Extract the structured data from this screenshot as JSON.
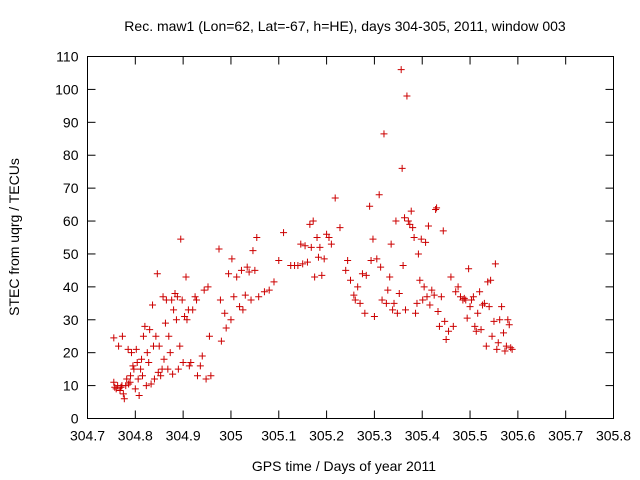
{
  "chart_data": {
    "type": "scatter",
    "title": "Rec. maw1 (Lon=62, Lat=-67, h=HE), days 304-305, 2011, window 003",
    "xlabel": "GPS time / Days of year 2011",
    "ylabel": "STEC from uqrg / TECUs",
    "xlim": [
      304.7,
      305.8
    ],
    "ylim": [
      0,
      110
    ],
    "xticks": [
      "304.7",
      "304.8",
      "304.9",
      "305",
      "305.1",
      "305.2",
      "305.3",
      "305.4",
      "305.5",
      "305.6",
      "305.7",
      "305.8"
    ],
    "yticks": [
      "0",
      "10",
      "20",
      "30",
      "40",
      "50",
      "60",
      "70",
      "80",
      "90",
      "100",
      "110"
    ],
    "marker": "plus",
    "color": "#cc0000",
    "grid": false,
    "legend": "none",
    "points": [
      [
        304.755,
        24.5
      ],
      [
        304.755,
        11
      ],
      [
        304.757,
        9.5
      ],
      [
        304.76,
        9
      ],
      [
        304.763,
        10
      ],
      [
        304.765,
        22
      ],
      [
        304.768,
        8.5
      ],
      [
        304.77,
        9.5
      ],
      [
        304.772,
        10
      ],
      [
        304.773,
        25
      ],
      [
        304.775,
        7.5
      ],
      [
        304.777,
        6
      ],
      [
        304.78,
        10
      ],
      [
        304.782,
        12
      ],
      [
        304.785,
        21
      ],
      [
        304.786,
        10.5
      ],
      [
        304.789,
        11
      ],
      [
        304.79,
        13
      ],
      [
        304.792,
        20
      ],
      [
        304.795,
        16
      ],
      [
        304.797,
        15
      ],
      [
        304.8,
        9
      ],
      [
        304.802,
        21
      ],
      [
        304.804,
        17
      ],
      [
        304.806,
        12
      ],
      [
        304.808,
        7
      ],
      [
        304.811,
        15
      ],
      [
        304.813,
        18
      ],
      [
        304.815,
        13
      ],
      [
        304.817,
        25
      ],
      [
        304.82,
        28
      ],
      [
        304.823,
        10
      ],
      [
        304.825,
        20
      ],
      [
        304.828,
        17
      ],
      [
        304.83,
        27
      ],
      [
        304.833,
        10.5
      ],
      [
        304.836,
        34.5
      ],
      [
        304.838,
        22
      ],
      [
        304.84,
        12
      ],
      [
        304.843,
        25
      ],
      [
        304.846,
        44
      ],
      [
        304.848,
        14
      ],
      [
        304.85,
        22
      ],
      [
        304.853,
        13
      ],
      [
        304.856,
        15
      ],
      [
        304.858,
        37
      ],
      [
        304.86,
        18
      ],
      [
        304.863,
        29
      ],
      [
        304.865,
        36
      ],
      [
        304.868,
        15
      ],
      [
        304.87,
        25
      ],
      [
        304.873,
        20
      ],
      [
        304.876,
        36
      ],
      [
        304.878,
        13.5
      ],
      [
        304.88,
        33
      ],
      [
        304.883,
        38
      ],
      [
        304.886,
        30
      ],
      [
        304.888,
        37
      ],
      [
        304.89,
        15
      ],
      [
        304.893,
        22
      ],
      [
        304.895,
        54.5
      ],
      [
        304.898,
        36
      ],
      [
        304.9,
        17
      ],
      [
        304.903,
        31
      ],
      [
        304.906,
        43
      ],
      [
        304.908,
        30
      ],
      [
        304.911,
        33
      ],
      [
        304.913,
        16
      ],
      [
        304.916,
        17
      ],
      [
        304.92,
        33
      ],
      [
        304.925,
        37
      ],
      [
        304.928,
        36
      ],
      [
        304.93,
        13
      ],
      [
        304.936,
        16
      ],
      [
        304.94,
        19
      ],
      [
        304.944,
        39
      ],
      [
        304.948,
        12
      ],
      [
        304.952,
        40
      ],
      [
        304.955,
        25
      ],
      [
        304.958,
        13
      ],
      [
        304.975,
        51.5
      ],
      [
        304.978,
        36
      ],
      [
        304.98,
        23.5
      ],
      [
        304.987,
        32
      ],
      [
        304.99,
        27.5
      ],
      [
        304.995,
        44
      ],
      [
        305.0,
        30
      ],
      [
        305.002,
        48.5
      ],
      [
        305.006,
        37
      ],
      [
        305.012,
        43
      ],
      [
        305.018,
        34
      ],
      [
        305.022,
        45
      ],
      [
        305.025,
        33
      ],
      [
        305.03,
        37.5
      ],
      [
        305.034,
        46
      ],
      [
        305.038,
        44.5
      ],
      [
        305.042,
        36
      ],
      [
        305.046,
        51
      ],
      [
        305.05,
        45
      ],
      [
        305.054,
        55
      ],
      [
        305.058,
        37
      ],
      [
        305.07,
        38.5
      ],
      [
        305.08,
        39
      ],
      [
        305.09,
        41.5
      ],
      [
        305.1,
        48
      ],
      [
        305.11,
        56.5
      ],
      [
        305.125,
        46.5
      ],
      [
        305.133,
        46.5
      ],
      [
        305.14,
        46.5
      ],
      [
        305.146,
        53
      ],
      [
        305.15,
        47
      ],
      [
        305.155,
        52.5
      ],
      [
        305.16,
        47.5
      ],
      [
        305.165,
        59
      ],
      [
        305.168,
        52
      ],
      [
        305.172,
        60
      ],
      [
        305.175,
        43
      ],
      [
        305.18,
        55
      ],
      [
        305.183,
        49
      ],
      [
        305.186,
        52
      ],
      [
        305.19,
        43.5
      ],
      [
        305.195,
        48.5
      ],
      [
        305.2,
        56
      ],
      [
        305.205,
        55
      ],
      [
        305.21,
        53
      ],
      [
        305.218,
        67
      ],
      [
        305.228,
        58
      ],
      [
        305.24,
        45
      ],
      [
        305.244,
        48
      ],
      [
        305.25,
        42
      ],
      [
        305.257,
        37.5
      ],
      [
        305.26,
        36
      ],
      [
        305.265,
        40
      ],
      [
        305.27,
        35
      ],
      [
        305.275,
        44
      ],
      [
        305.28,
        32
      ],
      [
        305.283,
        43.5
      ],
      [
        305.29,
        64.5
      ],
      [
        305.293,
        48
      ],
      [
        305.297,
        54.5
      ],
      [
        305.3,
        31
      ],
      [
        305.305,
        48.5
      ],
      [
        305.31,
        68
      ],
      [
        305.313,
        46
      ],
      [
        305.316,
        36
      ],
      [
        305.32,
        86.5
      ],
      [
        305.325,
        35
      ],
      [
        305.328,
        39
      ],
      [
        305.332,
        43
      ],
      [
        305.335,
        53
      ],
      [
        305.338,
        33
      ],
      [
        305.341,
        35
      ],
      [
        305.345,
        60
      ],
      [
        305.348,
        32
      ],
      [
        305.352,
        38
      ],
      [
        305.356,
        106
      ],
      [
        305.358,
        76
      ],
      [
        305.36,
        46.5
      ],
      [
        305.363,
        61
      ],
      [
        305.365,
        33
      ],
      [
        305.368,
        98
      ],
      [
        305.371,
        60
      ],
      [
        305.374,
        59
      ],
      [
        305.377,
        63
      ],
      [
        305.38,
        58
      ],
      [
        305.383,
        55
      ],
      [
        305.386,
        32
      ],
      [
        305.389,
        35
      ],
      [
        305.392,
        50
      ],
      [
        305.395,
        42
      ],
      [
        305.398,
        54.5
      ],
      [
        305.401,
        36
      ],
      [
        305.404,
        40
      ],
      [
        305.407,
        53.5
      ],
      [
        305.41,
        37
      ],
      [
        305.413,
        58.5
      ],
      [
        305.416,
        34.5
      ],
      [
        305.42,
        39
      ],
      [
        305.425,
        37.5
      ],
      [
        305.428,
        63.5
      ],
      [
        305.43,
        64
      ],
      [
        305.433,
        32.5
      ],
      [
        305.436,
        28
      ],
      [
        305.44,
        37
      ],
      [
        305.444,
        57
      ],
      [
        305.447,
        29.5
      ],
      [
        305.45,
        24
      ],
      [
        305.455,
        26.5
      ],
      [
        305.46,
        43
      ],
      [
        305.465,
        28
      ],
      [
        305.47,
        38.5
      ],
      [
        305.475,
        40
      ],
      [
        305.48,
        37
      ],
      [
        305.485,
        36
      ],
      [
        305.488,
        36.5
      ],
      [
        305.491,
        36
      ],
      [
        305.494,
        30.5
      ],
      [
        305.497,
        45.5
      ],
      [
        305.5,
        34
      ],
      [
        305.503,
        36
      ],
      [
        305.507,
        37
      ],
      [
        305.51,
        28
      ],
      [
        305.513,
        26.5
      ],
      [
        305.516,
        32
      ],
      [
        305.52,
        38.5
      ],
      [
        305.523,
        27
      ],
      [
        305.526,
        34.5
      ],
      [
        305.53,
        35
      ],
      [
        305.534,
        22
      ],
      [
        305.537,
        41.5
      ],
      [
        305.54,
        34
      ],
      [
        305.543,
        42
      ],
      [
        305.546,
        25
      ],
      [
        305.55,
        29.5
      ],
      [
        305.553,
        47
      ],
      [
        305.556,
        21
      ],
      [
        305.559,
        23
      ],
      [
        305.562,
        30
      ],
      [
        305.566,
        34
      ],
      [
        305.57,
        26
      ],
      [
        305.573,
        20.5
      ],
      [
        305.576,
        22
      ],
      [
        305.579,
        30
      ],
      [
        305.582,
        28.5
      ],
      [
        305.585,
        21.5
      ],
      [
        305.588,
        21
      ]
    ]
  }
}
